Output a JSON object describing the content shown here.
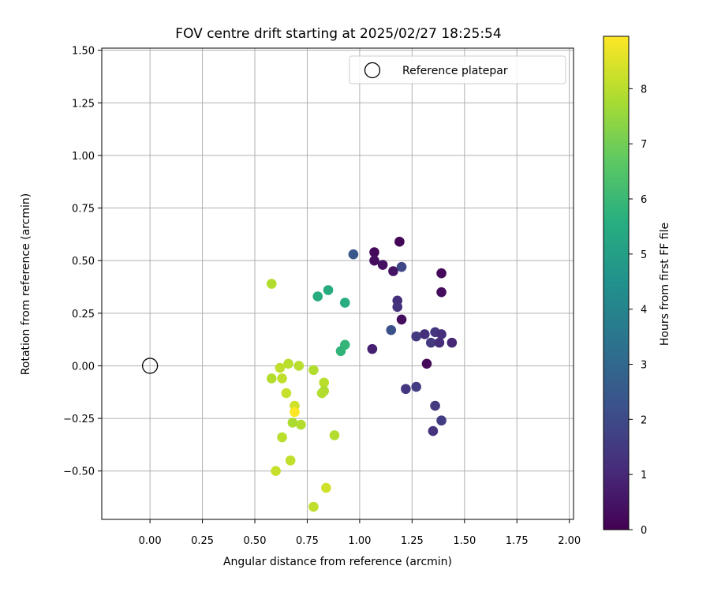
{
  "chart_data": {
    "type": "scatter",
    "title": "FOV centre drift starting at 2025/02/27 18:25:54",
    "xlabel": "Angular distance from reference (arcmin)",
    "ylabel": "Rotation from reference (arcmin)",
    "xlim": [
      -0.23,
      2.02
    ],
    "ylim": [
      -0.73,
      1.51
    ],
    "xticks": [
      0.0,
      0.25,
      0.5,
      0.75,
      1.0,
      1.25,
      1.5,
      1.75,
      2.0
    ],
    "xtick_labels": [
      "0.00",
      "0.25",
      "0.50",
      "0.75",
      "1.00",
      "1.25",
      "1.50",
      "1.75",
      "2.00"
    ],
    "yticks": [
      -0.5,
      -0.25,
      0.0,
      0.25,
      0.5,
      0.75,
      1.0,
      1.25,
      1.5
    ],
    "ytick_labels": [
      "−0.50",
      "−0.25",
      "0.00",
      "0.25",
      "0.50",
      "0.75",
      "1.00",
      "1.25",
      "1.50"
    ],
    "grid": true,
    "legend": {
      "position": "top-right",
      "entries": [
        "Reference platepar"
      ]
    },
    "reference_point": {
      "x": 0.0,
      "y": 0.0,
      "label": "Reference platepar"
    },
    "colorbar": {
      "label": "Hours from first FF file",
      "colormap": "viridis",
      "range": [
        0,
        8.95
      ],
      "ticks": [
        0,
        1,
        2,
        3,
        4,
        5,
        6,
        7,
        8
      ],
      "tick_labels": [
        "0",
        "1",
        "2",
        "3",
        "4",
        "5",
        "6",
        "7",
        "8"
      ]
    },
    "points": [
      {
        "x": 1.19,
        "y": 0.59,
        "hours": 0.1
      },
      {
        "x": 1.07,
        "y": 0.54,
        "hours": 0.2
      },
      {
        "x": 1.07,
        "y": 0.5,
        "hours": 0.3
      },
      {
        "x": 1.11,
        "y": 0.48,
        "hours": 0.4
      },
      {
        "x": 1.16,
        "y": 0.45,
        "hours": 0.5
      },
      {
        "x": 1.39,
        "y": 0.44,
        "hours": 0.2
      },
      {
        "x": 1.39,
        "y": 0.35,
        "hours": 0.3
      },
      {
        "x": 1.2,
        "y": 0.22,
        "hours": 0.3
      },
      {
        "x": 1.32,
        "y": 0.01,
        "hours": 0.2
      },
      {
        "x": 1.06,
        "y": 0.08,
        "hours": 0.8
      },
      {
        "x": 1.18,
        "y": 0.31,
        "hours": 1.2
      },
      {
        "x": 1.18,
        "y": 0.28,
        "hours": 1.3
      },
      {
        "x": 1.2,
        "y": 0.47,
        "hours": 1.9
      },
      {
        "x": 1.15,
        "y": 0.17,
        "hours": 2.2
      },
      {
        "x": 1.27,
        "y": 0.14,
        "hours": 1.5
      },
      {
        "x": 1.31,
        "y": 0.15,
        "hours": 1.2
      },
      {
        "x": 1.34,
        "y": 0.11,
        "hours": 1.5
      },
      {
        "x": 1.36,
        "y": 0.16,
        "hours": 1.4
      },
      {
        "x": 1.38,
        "y": 0.11,
        "hours": 1.1
      },
      {
        "x": 1.39,
        "y": 0.15,
        "hours": 1.2
      },
      {
        "x": 1.44,
        "y": 0.11,
        "hours": 1.0
      },
      {
        "x": 1.22,
        "y": -0.11,
        "hours": 1.4
      },
      {
        "x": 1.27,
        "y": -0.1,
        "hours": 1.6
      },
      {
        "x": 1.36,
        "y": -0.19,
        "hours": 1.5
      },
      {
        "x": 1.39,
        "y": -0.26,
        "hours": 1.6
      },
      {
        "x": 1.35,
        "y": -0.31,
        "hours": 1.3
      },
      {
        "x": 0.97,
        "y": 0.53,
        "hours": 2.4
      },
      {
        "x": 0.85,
        "y": 0.36,
        "hours": 5.5
      },
      {
        "x": 0.8,
        "y": 0.33,
        "hours": 5.5
      },
      {
        "x": 0.93,
        "y": 0.3,
        "hours": 5.6
      },
      {
        "x": 0.93,
        "y": 0.1,
        "hours": 5.9
      },
      {
        "x": 0.91,
        "y": 0.07,
        "hours": 5.8
      },
      {
        "x": 0.58,
        "y": 0.39,
        "hours": 7.9
      },
      {
        "x": 0.62,
        "y": -0.01,
        "hours": 8.1
      },
      {
        "x": 0.66,
        "y": 0.01,
        "hours": 8.0
      },
      {
        "x": 0.71,
        "y": 0.0,
        "hours": 8.0
      },
      {
        "x": 0.78,
        "y": -0.02,
        "hours": 7.9
      },
      {
        "x": 0.58,
        "y": -0.06,
        "hours": 7.9
      },
      {
        "x": 0.63,
        "y": -0.06,
        "hours": 8.1
      },
      {
        "x": 0.83,
        "y": -0.08,
        "hours": 8.0
      },
      {
        "x": 0.65,
        "y": -0.13,
        "hours": 8.2
      },
      {
        "x": 0.83,
        "y": -0.12,
        "hours": 7.8
      },
      {
        "x": 0.82,
        "y": -0.13,
        "hours": 7.9
      },
      {
        "x": 0.69,
        "y": -0.19,
        "hours": 8.3
      },
      {
        "x": 0.69,
        "y": -0.22,
        "hours": 8.95
      },
      {
        "x": 0.68,
        "y": -0.27,
        "hours": 7.8
      },
      {
        "x": 0.72,
        "y": -0.28,
        "hours": 7.9
      },
      {
        "x": 0.63,
        "y": -0.34,
        "hours": 8.0
      },
      {
        "x": 0.88,
        "y": -0.33,
        "hours": 7.9
      },
      {
        "x": 0.67,
        "y": -0.45,
        "hours": 8.1
      },
      {
        "x": 0.6,
        "y": -0.5,
        "hours": 8.2
      },
      {
        "x": 0.84,
        "y": -0.58,
        "hours": 8.3
      },
      {
        "x": 0.78,
        "y": -0.67,
        "hours": 8.1
      }
    ]
  }
}
